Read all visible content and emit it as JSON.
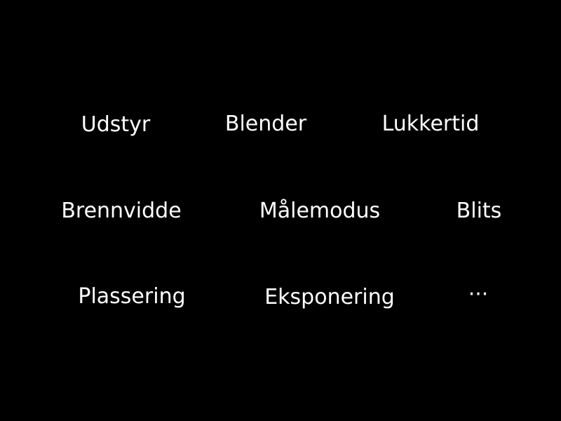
{
  "menu": {
    "items": [
      {
        "label": "Udstyr"
      },
      {
        "label": "Blender"
      },
      {
        "label": "Lukkertid"
      },
      {
        "label": "Brennvidde"
      },
      {
        "label": "Målemodus"
      },
      {
        "label": "Blits"
      },
      {
        "label": "Plassering"
      },
      {
        "label": "Eksponering"
      },
      {
        "label": "···"
      }
    ]
  },
  "colors": {
    "background": "#000000",
    "text": "#ffffff"
  }
}
